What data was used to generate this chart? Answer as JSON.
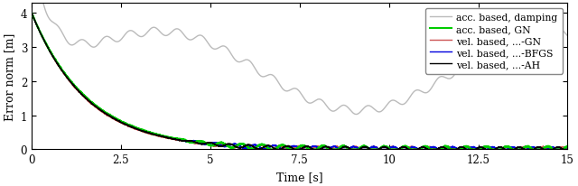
{
  "title": "",
  "xlabel": "Time [s]",
  "ylabel": "Error norm [m]",
  "xlim": [
    0,
    15
  ],
  "ylim": [
    0,
    4.3
  ],
  "yticks": [
    0,
    1,
    2,
    3,
    4
  ],
  "xticks": [
    0,
    2.5,
    5,
    7.5,
    10,
    12.5,
    15
  ],
  "legend_entries": [
    {
      "label": "vel. based, ...-AH",
      "color": "#000000",
      "lw": 1.0
    },
    {
      "label": "vel. based, ...-BFGS",
      "color": "#0000dd",
      "lw": 1.0
    },
    {
      "label": "vel. based, ...-GN",
      "color": "#cc5555",
      "lw": 1.0
    },
    {
      "label": "acc. based, GN",
      "color": "#00cc00",
      "lw": 1.5
    },
    {
      "label": "acc. based, damping",
      "color": "#bbbbbb",
      "lw": 1.0
    }
  ],
  "figsize": [
    6.4,
    2.07
  ],
  "dpi": 100
}
